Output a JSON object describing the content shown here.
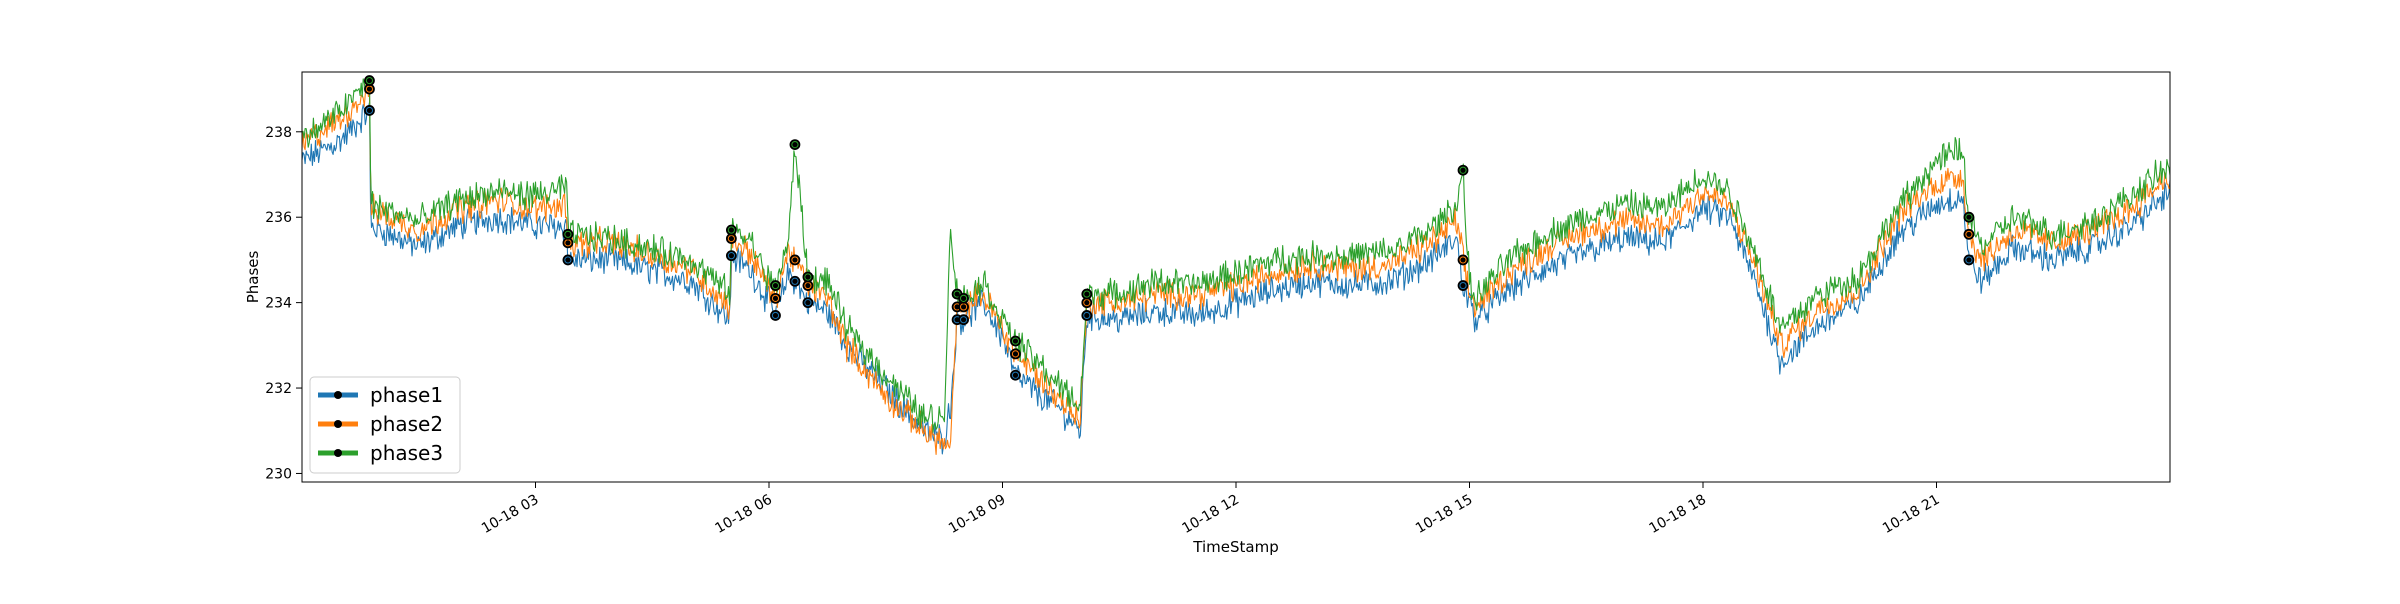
{
  "chart_data": {
    "type": "line",
    "title": "",
    "xlabel": "TimeStamp",
    "ylabel": "Phases",
    "x_range": [
      "10-18 00:00",
      "10-18 24:00"
    ],
    "ylim": [
      229.8,
      239.4
    ],
    "xticks": [
      "10-18 03",
      "10-18 06",
      "10-18 09",
      "10-18 12",
      "10-18 15",
      "10-18 18",
      "10-18 21"
    ],
    "yticks": [
      230,
      232,
      234,
      236,
      238
    ],
    "grid": false,
    "legend_position": "lower-left",
    "series": [
      {
        "name": "phase1",
        "color": "#1f77b4",
        "x": [
          "00:00",
          "00:30",
          "00:52",
          "00:53",
          "01:30",
          "02:00",
          "02:30",
          "03:00",
          "03:24",
          "03:25",
          "04:00",
          "05:00",
          "05:30",
          "05:31",
          "05:45",
          "06:00",
          "06:05",
          "06:15",
          "06:20",
          "06:30",
          "06:45",
          "07:00",
          "07:30",
          "08:00",
          "08:15",
          "08:20",
          "08:25",
          "08:30",
          "08:45",
          "09:00",
          "09:10",
          "09:30",
          "09:45",
          "10:00",
          "10:05",
          "10:30",
          "11:00",
          "11:30",
          "12:00",
          "12:30",
          "13:00",
          "13:30",
          "14:00",
          "14:30",
          "14:50",
          "14:55",
          "15:00",
          "15:05",
          "15:30",
          "16:00",
          "16:30",
          "17:00",
          "17:30",
          "18:00",
          "18:20",
          "18:40",
          "19:00",
          "19:30",
          "20:00",
          "20:30",
          "21:00",
          "21:20",
          "21:25",
          "21:35",
          "22:00",
          "22:30",
          "23:00",
          "23:30",
          "24:00"
        ],
        "y": [
          237.3,
          237.8,
          238.5,
          235.8,
          235.3,
          235.8,
          236.0,
          235.8,
          235.8,
          235.0,
          235.0,
          234.5,
          233.6,
          235.1,
          234.8,
          234.0,
          233.7,
          234.7,
          234.5,
          234.0,
          233.8,
          233.0,
          232.0,
          231.0,
          230.8,
          231.6,
          233.6,
          233.6,
          234.0,
          233.2,
          232.3,
          231.8,
          231.5,
          231.0,
          233.7,
          233.6,
          233.8,
          233.7,
          234.0,
          234.3,
          234.5,
          234.4,
          234.5,
          235.0,
          235.5,
          234.4,
          234.0,
          233.6,
          234.3,
          234.8,
          235.2,
          235.5,
          235.4,
          236.2,
          236.0,
          234.5,
          232.6,
          233.5,
          234.0,
          235.6,
          236.3,
          236.5,
          235.0,
          234.5,
          235.3,
          235.0,
          235.3,
          235.8,
          236.6
        ]
      },
      {
        "name": "phase2",
        "color": "#ff7f0e",
        "x": [
          "00:00",
          "00:30",
          "00:52",
          "00:53",
          "01:30",
          "02:00",
          "02:30",
          "03:00",
          "03:24",
          "03:25",
          "04:00",
          "05:00",
          "05:30",
          "05:31",
          "05:45",
          "06:00",
          "06:05",
          "06:15",
          "06:20",
          "06:30",
          "06:45",
          "07:00",
          "07:30",
          "08:00",
          "08:15",
          "08:20",
          "08:25",
          "08:30",
          "08:45",
          "09:00",
          "09:10",
          "09:30",
          "09:45",
          "10:00",
          "10:05",
          "10:30",
          "11:00",
          "11:30",
          "12:00",
          "12:30",
          "13:00",
          "13:30",
          "14:00",
          "14:30",
          "14:50",
          "14:55",
          "15:00",
          "15:05",
          "15:30",
          "16:00",
          "16:30",
          "17:00",
          "17:30",
          "18:00",
          "18:20",
          "18:40",
          "19:00",
          "19:30",
          "20:00",
          "20:30",
          "21:00",
          "21:20",
          "21:25",
          "21:35",
          "22:00",
          "22:30",
          "23:00",
          "23:30",
          "24:00"
        ],
        "y": [
          237.7,
          238.3,
          239.0,
          236.2,
          235.7,
          236.2,
          236.4,
          236.2,
          236.3,
          235.4,
          235.4,
          234.8,
          233.9,
          235.5,
          235.2,
          234.3,
          234.1,
          235.2,
          235.0,
          234.4,
          234.1,
          233.0,
          231.8,
          231.0,
          230.7,
          230.6,
          233.9,
          233.9,
          234.2,
          233.4,
          232.8,
          232.2,
          231.7,
          231.3,
          234.0,
          234.0,
          234.2,
          234.2,
          234.4,
          234.7,
          234.9,
          234.8,
          234.9,
          235.4,
          235.9,
          235.0,
          234.2,
          233.9,
          234.7,
          235.3,
          235.7,
          235.9,
          235.8,
          236.6,
          236.3,
          234.9,
          233.0,
          233.9,
          234.3,
          236.0,
          236.8,
          237.0,
          235.6,
          235.0,
          235.7,
          235.4,
          235.7,
          236.2,
          237.0
        ]
      },
      {
        "name": "phase3",
        "color": "#2ca02c",
        "x": [
          "00:00",
          "00:30",
          "00:52",
          "00:53",
          "01:30",
          "02:00",
          "02:30",
          "03:00",
          "03:24",
          "03:25",
          "04:00",
          "05:00",
          "05:30",
          "05:31",
          "05:45",
          "06:00",
          "06:05",
          "06:15",
          "06:20",
          "06:30",
          "06:45",
          "07:00",
          "07:30",
          "08:00",
          "08:15",
          "08:20",
          "08:25",
          "08:30",
          "08:45",
          "09:00",
          "09:10",
          "09:30",
          "09:45",
          "10:00",
          "10:05",
          "10:30",
          "11:00",
          "11:30",
          "12:00",
          "12:30",
          "13:00",
          "13:30",
          "14:00",
          "14:30",
          "14:50",
          "14:55",
          "15:00",
          "15:05",
          "15:30",
          "16:00",
          "16:30",
          "17:00",
          "17:30",
          "18:00",
          "18:20",
          "18:40",
          "19:00",
          "19:30",
          "20:00",
          "20:30",
          "21:00",
          "21:20",
          "21:25",
          "21:35",
          "22:00",
          "22:30",
          "23:00",
          "23:30",
          "24:00"
        ],
        "y": [
          237.8,
          238.5,
          239.2,
          236.3,
          235.9,
          236.4,
          236.6,
          236.5,
          236.7,
          235.6,
          235.5,
          235.0,
          234.2,
          235.7,
          235.5,
          234.5,
          234.4,
          235.4,
          237.7,
          234.6,
          234.5,
          233.4,
          232.3,
          231.3,
          231.3,
          235.8,
          234.2,
          234.1,
          234.5,
          233.6,
          233.1,
          232.5,
          232.0,
          231.6,
          234.2,
          234.2,
          234.5,
          234.4,
          234.7,
          235.0,
          235.1,
          235.1,
          235.2,
          235.7,
          236.3,
          237.1,
          234.4,
          234.1,
          235.0,
          235.6,
          236.0,
          236.3,
          236.2,
          237.0,
          236.6,
          235.2,
          233.4,
          234.2,
          234.6,
          236.2,
          237.3,
          237.6,
          236.0,
          235.3,
          236.0,
          235.6,
          235.9,
          236.5,
          237.2
        ]
      }
    ],
    "markers": {
      "x": [
        "00:52",
        "03:25",
        "05:31",
        "06:05",
        "06:20",
        "06:30",
        "08:25",
        "08:30",
        "09:10",
        "10:05",
        "14:55",
        "21:25"
      ],
      "color": "#000000"
    }
  }
}
